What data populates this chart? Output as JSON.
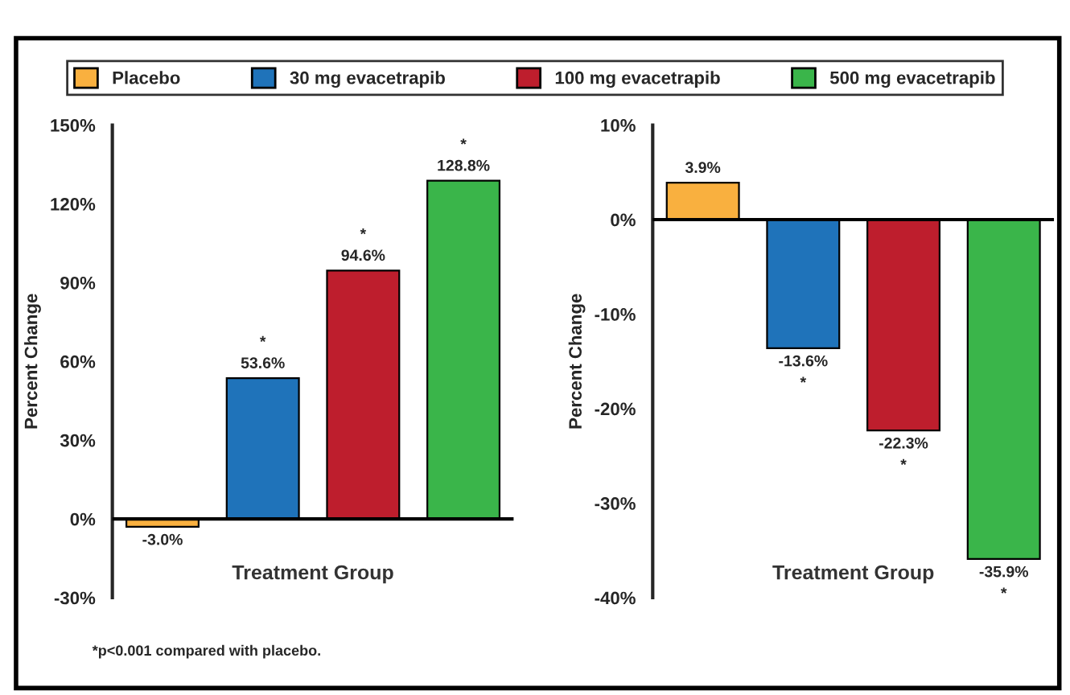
{
  "chart_data": [
    {
      "type": "bar",
      "categories": [
        null,
        null,
        null,
        null
      ],
      "xlabel": "Treatment Group",
      "ylabel": "Percent Change",
      "ylim": [
        -30,
        150
      ],
      "yticks": [
        {
          "value": -30,
          "label": "-30%"
        },
        {
          "value": 0,
          "label": "0%"
        },
        {
          "value": 30,
          "label": "30%"
        },
        {
          "value": 60,
          "label": "60%"
        },
        {
          "value": 90,
          "label": "90%"
        },
        {
          "value": 120,
          "label": "120%"
        },
        {
          "value": 150,
          "label": "150%"
        }
      ],
      "legend": "top",
      "grid": false,
      "ref_lines": [
        {
          "axis": "y",
          "value": 0
        }
      ],
      "series": [
        {
          "name": "Placebo",
          "color": "#f9b03f",
          "values": [
            -3.0,
            null,
            null,
            null
          ],
          "value_labels": [
            "-3.0%",
            null,
            null,
            null
          ]
        },
        {
          "name": "30 mg evacetrapib",
          "color": "#1f73ba",
          "values": [
            null,
            53.6,
            null,
            null
          ],
          "value_labels": [
            null,
            "*\n53.6%",
            null,
            null
          ]
        },
        {
          "name": "100 mg evacetrapib",
          "color": "#be1e2d",
          "values": [
            null,
            null,
            94.6,
            null
          ],
          "value_labels": [
            null,
            null,
            "*\n94.6%",
            null
          ]
        },
        {
          "name": "500 mg evacetrapib",
          "color": "#3ab54a",
          "values": [
            null,
            null,
            null,
            128.8
          ],
          "value_labels": [
            null,
            null,
            null,
            "*\n128.8%"
          ]
        }
      ],
      "annotations": [
        "*p<0.001 compared with placebo."
      ]
    },
    {
      "type": "bar",
      "categories": [
        null,
        null,
        null,
        null
      ],
      "xlabel": "Treatment Group",
      "ylabel": "Percent Change",
      "ylim": [
        -40,
        10
      ],
      "yticks": [
        {
          "value": -40,
          "label": "-40%"
        },
        {
          "value": -30,
          "label": "-30%"
        },
        {
          "value": -20,
          "label": "-20%"
        },
        {
          "value": -10,
          "label": "-10%"
        },
        {
          "value": 0,
          "label": "0%"
        },
        {
          "value": 10,
          "label": "10%"
        }
      ],
      "grid": false,
      "ref_lines": [
        {
          "axis": "y",
          "value": 0
        }
      ],
      "series": [
        {
          "color": "#f9b03f",
          "values": [
            3.9,
            null,
            null,
            null
          ],
          "value_labels": [
            "3.9%",
            null,
            null,
            null
          ]
        },
        {
          "color": "#1f73ba",
          "values": [
            null,
            -13.6,
            null,
            null
          ],
          "value_labels": [
            null,
            "-13.6%\n*",
            null,
            null
          ]
        },
        {
          "color": "#be1e2d",
          "values": [
            null,
            null,
            -22.3,
            null
          ],
          "value_labels": [
            null,
            null,
            "-22.3%\n*",
            null
          ]
        },
        {
          "color": "#3ab54a",
          "values": [
            null,
            null,
            null,
            -35.9
          ],
          "value_labels": [
            null,
            null,
            null,
            "-35.9%\n*"
          ]
        }
      ]
    }
  ]
}
